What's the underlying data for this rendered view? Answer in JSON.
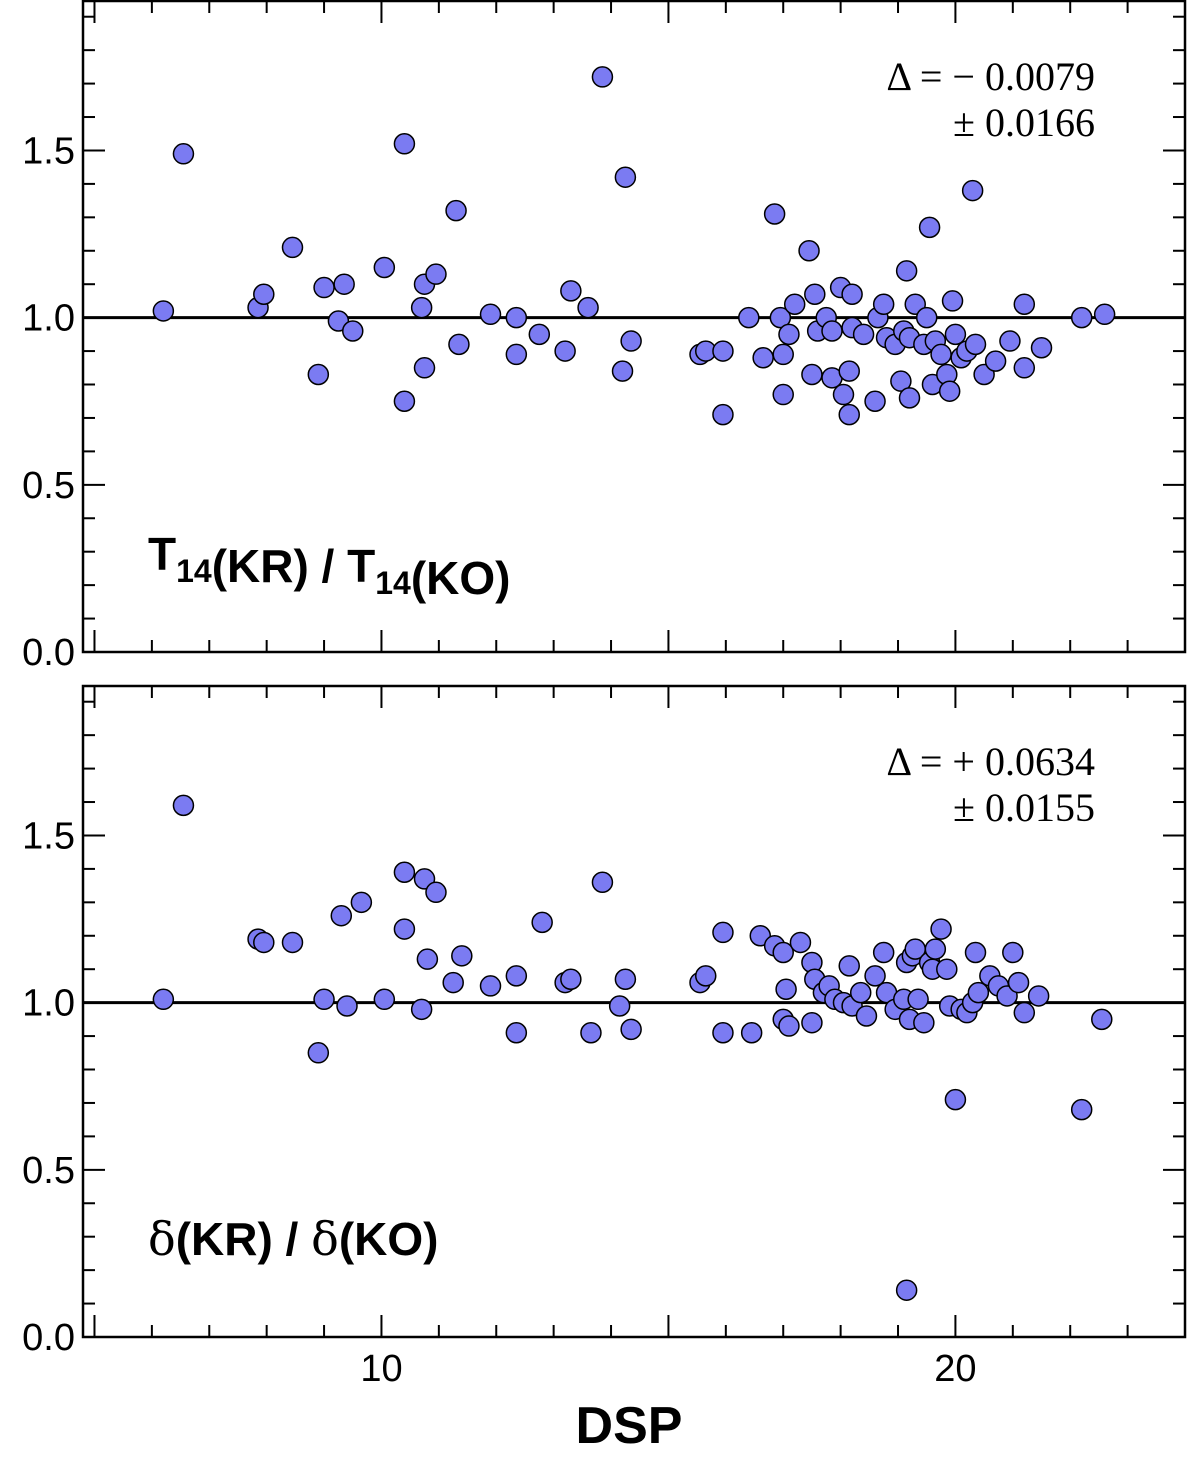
{
  "chart_data": [
    {
      "type": "scatter",
      "panel_label": {
        "parts": [
          {
            "text": "T",
            "style": "bold"
          },
          {
            "text": "14",
            "style": "sub"
          },
          {
            "text": "(KR) / ",
            "style": "bold"
          },
          {
            "text": "T",
            "style": "bold"
          },
          {
            "text": "14",
            "style": "sub"
          },
          {
            "text": "(KO)",
            "style": "bold"
          }
        ]
      },
      "stat_line1": "Δ = − 0.0079",
      "stat_line2": "± 0.0166",
      "reference_line": 1.0,
      "xlim": [
        4.8,
        24.0
      ],
      "ylim": [
        0.0,
        1.95
      ],
      "yticks": [
        0.0,
        0.5,
        1.0,
        1.5
      ],
      "ytick_labels": [
        "0.0",
        "0.5",
        "1.0",
        "1.5"
      ],
      "xtick_labels_shown": false,
      "marker_color": "#7b7bf2",
      "points": [
        [
          6.2,
          1.02
        ],
        [
          6.55,
          1.49
        ],
        [
          7.85,
          1.03
        ],
        [
          7.95,
          1.07
        ],
        [
          8.45,
          1.21
        ],
        [
          8.9,
          0.83
        ],
        [
          9.0,
          1.09
        ],
        [
          9.25,
          0.99
        ],
        [
          9.35,
          1.1
        ],
        [
          9.5,
          0.96
        ],
        [
          10.05,
          1.15
        ],
        [
          10.4,
          0.75
        ],
        [
          10.4,
          1.52
        ],
        [
          10.7,
          1.03
        ],
        [
          10.75,
          0.85
        ],
        [
          10.75,
          1.1
        ],
        [
          10.95,
          1.13
        ],
        [
          11.3,
          1.32
        ],
        [
          11.35,
          0.92
        ],
        [
          11.9,
          1.01
        ],
        [
          12.35,
          1.0
        ],
        [
          12.35,
          0.89
        ],
        [
          12.75,
          0.95
        ],
        [
          13.2,
          0.9
        ],
        [
          13.3,
          1.08
        ],
        [
          13.6,
          1.03
        ],
        [
          13.85,
          1.72
        ],
        [
          14.2,
          0.84
        ],
        [
          14.25,
          1.42
        ],
        [
          14.35,
          0.93
        ],
        [
          15.55,
          0.89
        ],
        [
          15.65,
          0.9
        ],
        [
          15.95,
          0.9
        ],
        [
          15.95,
          0.71
        ],
        [
          16.4,
          1.0
        ],
        [
          16.65,
          0.88
        ],
        [
          16.85,
          1.31
        ],
        [
          16.95,
          1.0
        ],
        [
          17.0,
          0.89
        ],
        [
          17.0,
          0.77
        ],
        [
          17.1,
          0.95
        ],
        [
          17.2,
          1.04
        ],
        [
          17.45,
          1.2
        ],
        [
          17.5,
          0.83
        ],
        [
          17.55,
          1.07
        ],
        [
          17.6,
          0.96
        ],
        [
          17.75,
          1.0
        ],
        [
          17.85,
          0.82
        ],
        [
          17.85,
          0.96
        ],
        [
          18.0,
          1.09
        ],
        [
          18.05,
          0.77
        ],
        [
          18.15,
          0.84
        ],
        [
          18.15,
          0.71
        ],
        [
          18.2,
          1.07
        ],
        [
          18.2,
          0.97
        ],
        [
          18.4,
          0.95
        ],
        [
          18.6,
          0.75
        ],
        [
          18.65,
          1.0
        ],
        [
          18.75,
          1.04
        ],
        [
          18.8,
          0.94
        ],
        [
          18.95,
          0.92
        ],
        [
          19.05,
          0.81
        ],
        [
          19.1,
          0.96
        ],
        [
          19.15,
          1.14
        ],
        [
          19.2,
          0.76
        ],
        [
          19.2,
          0.94
        ],
        [
          19.3,
          1.04
        ],
        [
          19.45,
          0.92
        ],
        [
          19.5,
          1.0
        ],
        [
          19.55,
          1.27
        ],
        [
          19.6,
          0.8
        ],
        [
          19.65,
          0.93
        ],
        [
          19.75,
          0.89
        ],
        [
          19.85,
          0.83
        ],
        [
          19.9,
          0.78
        ],
        [
          19.95,
          1.05
        ],
        [
          20.0,
          0.95
        ],
        [
          20.1,
          0.88
        ],
        [
          20.2,
          0.9
        ],
        [
          20.3,
          1.38
        ],
        [
          20.35,
          0.92
        ],
        [
          20.5,
          0.83
        ],
        [
          20.7,
          0.87
        ],
        [
          20.95,
          0.93
        ],
        [
          21.2,
          1.04
        ],
        [
          21.2,
          0.85
        ],
        [
          21.5,
          0.91
        ],
        [
          22.2,
          1.0
        ],
        [
          22.6,
          1.01
        ]
      ]
    },
    {
      "type": "scatter",
      "panel_label": {
        "parts": [
          {
            "text": "δ",
            "style": "serif"
          },
          {
            "text": "(KR) / ",
            "style": "bold"
          },
          {
            "text": "δ",
            "style": "serif"
          },
          {
            "text": "(KO)",
            "style": "bold"
          }
        ]
      },
      "stat_line1": "Δ = + 0.0634",
      "stat_line2": "± 0.0155",
      "reference_line": 1.0,
      "xlim": [
        4.8,
        24.0
      ],
      "ylim": [
        0.0,
        1.95
      ],
      "yticks": [
        0.0,
        0.5,
        1.0,
        1.5
      ],
      "ytick_labels": [
        "0.0",
        "0.5",
        "1.0",
        "1.5"
      ],
      "xticks": [
        10,
        20
      ],
      "xtick_labels": [
        "10",
        "20"
      ],
      "xlabel": "DSP",
      "marker_color": "#7b7bf2",
      "points": [
        [
          6.2,
          1.01
        ],
        [
          6.55,
          1.59
        ],
        [
          7.85,
          1.19
        ],
        [
          7.95,
          1.18
        ],
        [
          8.45,
          1.18
        ],
        [
          8.9,
          0.85
        ],
        [
          9.0,
          1.01
        ],
        [
          9.3,
          1.26
        ],
        [
          9.4,
          0.99
        ],
        [
          9.65,
          1.3
        ],
        [
          10.05,
          1.01
        ],
        [
          10.4,
          1.22
        ],
        [
          10.4,
          1.39
        ],
        [
          10.7,
          0.98
        ],
        [
          10.75,
          1.37
        ],
        [
          10.8,
          1.13
        ],
        [
          10.95,
          1.33
        ],
        [
          11.25,
          1.06
        ],
        [
          11.4,
          1.14
        ],
        [
          11.9,
          1.05
        ],
        [
          12.35,
          1.08
        ],
        [
          12.35,
          0.91
        ],
        [
          12.8,
          1.24
        ],
        [
          13.2,
          1.06
        ],
        [
          13.3,
          1.07
        ],
        [
          13.65,
          0.91
        ],
        [
          13.85,
          1.36
        ],
        [
          14.15,
          0.99
        ],
        [
          14.25,
          1.07
        ],
        [
          14.35,
          0.92
        ],
        [
          15.55,
          1.06
        ],
        [
          15.65,
          1.08
        ],
        [
          15.95,
          1.21
        ],
        [
          15.95,
          0.91
        ],
        [
          16.45,
          0.91
        ],
        [
          16.6,
          1.2
        ],
        [
          16.85,
          1.17
        ],
        [
          17.0,
          1.15
        ],
        [
          17.0,
          0.95
        ],
        [
          17.05,
          1.04
        ],
        [
          17.1,
          0.93
        ],
        [
          17.3,
          1.18
        ],
        [
          17.5,
          1.12
        ],
        [
          17.5,
          0.94
        ],
        [
          17.55,
          1.07
        ],
        [
          17.7,
          1.03
        ],
        [
          17.8,
          1.05
        ],
        [
          17.9,
          1.01
        ],
        [
          18.05,
          1.0
        ],
        [
          18.15,
          1.11
        ],
        [
          18.2,
          0.99
        ],
        [
          18.35,
          1.03
        ],
        [
          18.45,
          0.96
        ],
        [
          18.6,
          1.08
        ],
        [
          18.75,
          1.15
        ],
        [
          18.8,
          1.03
        ],
        [
          18.95,
          0.98
        ],
        [
          19.1,
          1.01
        ],
        [
          19.15,
          1.12
        ],
        [
          19.2,
          0.95
        ],
        [
          19.25,
          1.14
        ],
        [
          19.3,
          1.16
        ],
        [
          19.35,
          1.01
        ],
        [
          19.45,
          0.94
        ],
        [
          19.55,
          1.12
        ],
        [
          19.6,
          1.1
        ],
        [
          19.65,
          1.16
        ],
        [
          19.75,
          1.22
        ],
        [
          19.85,
          1.1
        ],
        [
          19.9,
          0.99
        ],
        [
          20.0,
          0.71
        ],
        [
          20.1,
          0.98
        ],
        [
          20.2,
          0.97
        ],
        [
          20.3,
          1.0
        ],
        [
          20.35,
          1.15
        ],
        [
          20.4,
          1.03
        ],
        [
          20.6,
          1.08
        ],
        [
          20.75,
          1.05
        ],
        [
          20.9,
          1.02
        ],
        [
          21.0,
          1.15
        ],
        [
          21.1,
          1.06
        ],
        [
          21.2,
          0.97
        ],
        [
          21.45,
          1.02
        ],
        [
          19.15,
          0.14
        ],
        [
          22.2,
          0.68
        ],
        [
          22.55,
          0.95
        ]
      ]
    }
  ]
}
